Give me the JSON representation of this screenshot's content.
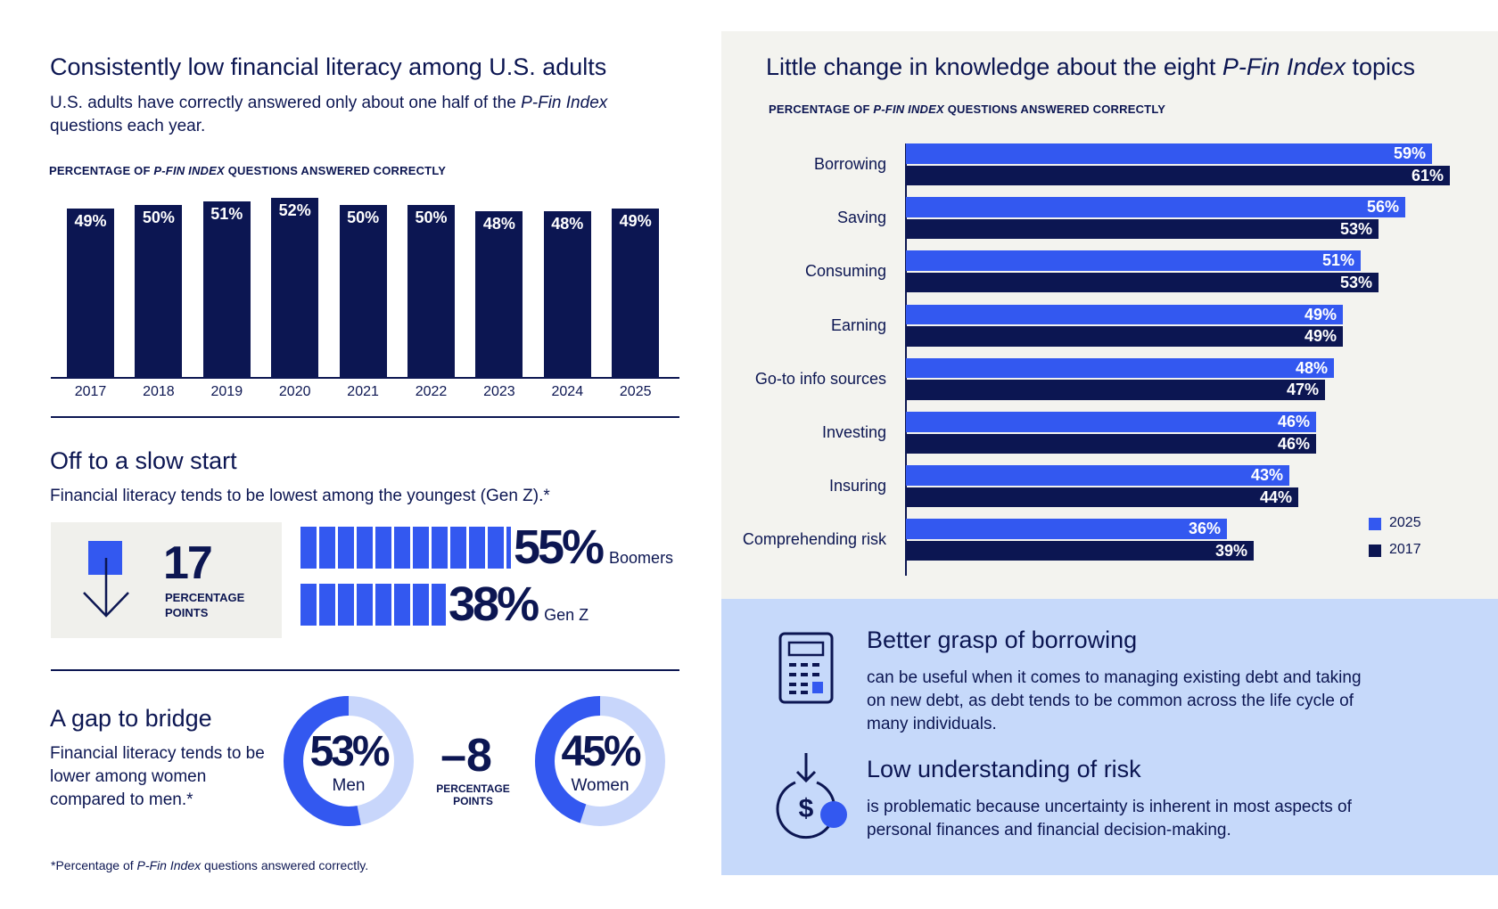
{
  "chart_data": [
    {
      "type": "bar",
      "title": "Consistently low financial literacy among U.S. adults",
      "subtitle": [
        "U.S. adults have correctly answered only about one half of the ",
        "P-Fin",
        " ",
        "Index",
        " questions each year."
      ],
      "ylabel": [
        "PERCENTAGE OF ",
        "P-FIN INDEX",
        " QUESTIONS ANSWERED CORRECTLY"
      ],
      "categories": [
        "2017",
        "2018",
        "2019",
        "2020",
        "2021",
        "2022",
        "2023",
        "2024",
        "2025"
      ],
      "values": [
        49,
        50,
        51,
        52,
        50,
        50,
        48,
        48,
        49
      ],
      "value_labels": [
        "49%",
        "50%",
        "51%",
        "52%",
        "50%",
        "50%",
        "48%",
        "48%",
        "49%"
      ],
      "color": "#0c1652"
    },
    {
      "type": "hbar",
      "title": [
        "Little change in knowledge about the eight ",
        "P-Fin Index",
        " topics"
      ],
      "ylabel": [
        "PERCENTAGE OF ",
        "P-FIN INDEX",
        " QUESTIONS ANSWERED CORRECTLY"
      ],
      "categories": [
        "Borrowing",
        "Saving",
        "Consuming",
        "Earning",
        "Go-to info sources",
        "Investing",
        "Insuring",
        "Comprehending risk"
      ],
      "series": [
        {
          "name": "2025",
          "color": "#3358f0",
          "values": [
            59,
            56,
            51,
            49,
            48,
            46,
            43,
            36
          ],
          "value_labels": [
            "59%",
            "56%",
            "51%",
            "49%",
            "48%",
            "46%",
            "43%",
            "36%"
          ]
        },
        {
          "name": "2017",
          "color": "#0c1652",
          "values": [
            61,
            53,
            53,
            49,
            47,
            46,
            44,
            39
          ],
          "value_labels": [
            "61%",
            "53%",
            "53%",
            "49%",
            "47%",
            "46%",
            "44%",
            "39%"
          ]
        }
      ],
      "legend": "bottom-right"
    },
    {
      "type": "blockbar",
      "title": "Off to a slow start",
      "subtitle": "Financial literacy tends to be lowest among the youngest (Gen Z).*",
      "difference": 17,
      "difference_unit": "PERCENTAGE POINTS",
      "categories": [
        "Boomers",
        "Gen Z"
      ],
      "values": [
        55,
        38
      ],
      "value_labels": [
        "55%",
        "38%"
      ],
      "color": "#3358f0"
    },
    {
      "type": "donut",
      "title": "A gap to bridge",
      "subtitle": "Financial literacy tends to be lower among women compared to men.*",
      "difference": {
        "value": -8,
        "label": "–8"
      },
      "difference_unit": "PERCENTAGE POINTS",
      "categories": [
        "Men",
        "Women"
      ],
      "values": [
        53,
        45
      ],
      "value_labels": [
        "53%",
        "45%"
      ],
      "color": "#3358f0",
      "track_color": "#c8d6fb"
    }
  ],
  "insights": [
    {
      "heading": "Better grasp of borrowing",
      "body": "can be useful when it comes to managing existing debt and taking on new debt, as debt tends to be common across the life cycle of many individuals."
    },
    {
      "heading": "Low understanding of risk",
      "body": "is problematic because uncertainty is inherent in most aspects of personal finances and financial decision-making."
    }
  ],
  "footnote": [
    "*Percentage of ",
    "P-Fin Index",
    " questions answered correctly."
  ]
}
